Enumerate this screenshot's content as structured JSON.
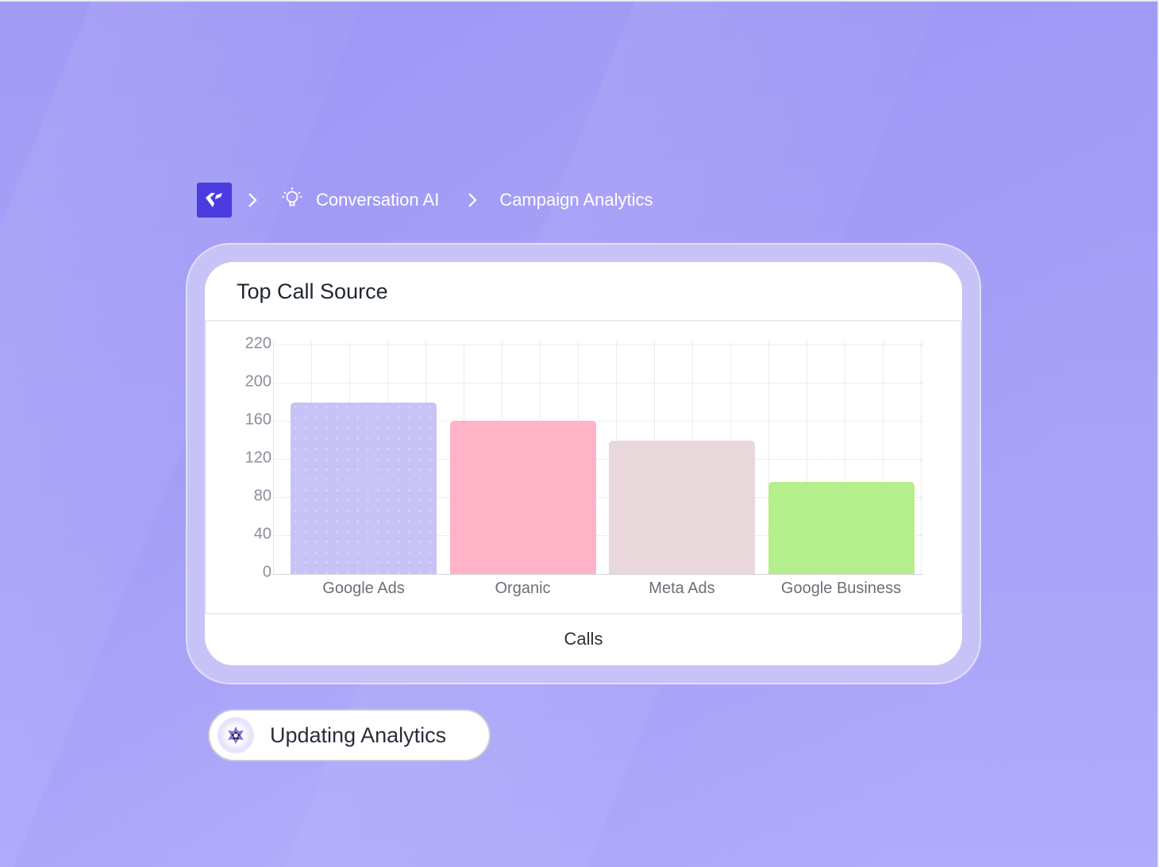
{
  "breadcrumb": {
    "logo_icon": "brand-logo-icon",
    "items": [
      {
        "label": "Conversation AI",
        "icon": "lightbulb-icon"
      },
      {
        "label": "Campaign Analytics"
      }
    ],
    "separator_icon": "chevron-right-icon"
  },
  "card": {
    "title": "Top Call Source",
    "footer_label": "Calls"
  },
  "status": {
    "label": "Updating Analytics",
    "icon": "spinner-sparkle-icon"
  },
  "colors": {
    "background": "#a59ef7",
    "brand": "#4b3ce0",
    "google_ads": "#c8c3f6",
    "organic": "#ffb3c6",
    "meta_ads": "#e8d8dc",
    "google_business": "#b4ef8b"
  },
  "chart_data": {
    "type": "bar",
    "title": "Top Call Source",
    "xlabel": "Calls",
    "ylabel": "",
    "categories": [
      "Google Ads",
      "Organic",
      "Meta Ads",
      "Google Business"
    ],
    "values": [
      180,
      161,
      140,
      97
    ],
    "y_tick_labels": [
      "0",
      "40",
      "80",
      "120",
      "160",
      "200",
      "220"
    ],
    "ylim": [
      0,
      220
    ],
    "grid": true,
    "legend": "none",
    "bar_colors": [
      "#c8c3f6",
      "#ffb3c6",
      "#e8d8dc",
      "#b4ef8b"
    ]
  }
}
